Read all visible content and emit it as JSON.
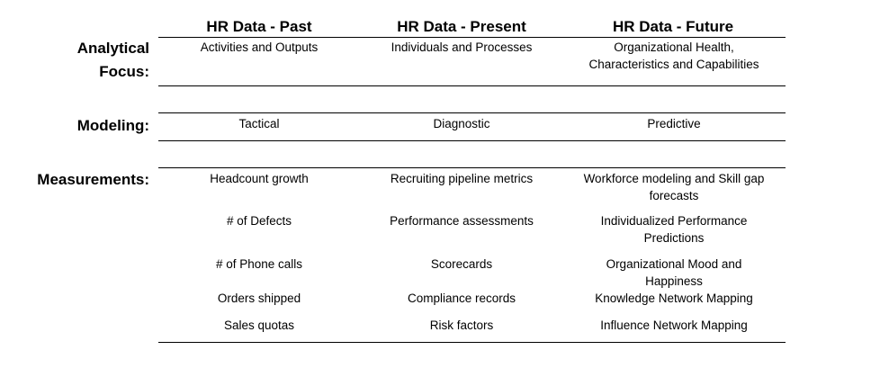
{
  "headers": [
    "HR Data - Past",
    "HR Data - Present",
    "HR Data - Future"
  ],
  "rows": {
    "analytical_focus": {
      "label_line1": "Analytical",
      "label_line2": "Focus:",
      "cells": [
        "Activities and Outputs",
        "Individuals and Processes",
        "Organizational Health, Characteristics and Capabilities"
      ]
    },
    "modeling": {
      "label": "Modeling:",
      "cells": [
        "Tactical",
        "Diagnostic",
        "Predictive"
      ]
    },
    "measurements": {
      "label": "Measurements:",
      "items": [
        [
          "Headcount growth",
          "Recruiting pipeline metrics",
          "Workforce modeling and Skill gap forecasts"
        ],
        [
          "# of Defects",
          "Performance assessments",
          "Individualized Performance Predictions"
        ],
        [
          "# of Phone calls",
          "Scorecards",
          "Organizational Mood and Happiness"
        ],
        [
          "Orders shipped",
          "Compliance records",
          "Knowledge Network Mapping"
        ],
        [
          "Sales quotas",
          "Risk factors",
          "Influence Network Mapping"
        ]
      ]
    }
  }
}
